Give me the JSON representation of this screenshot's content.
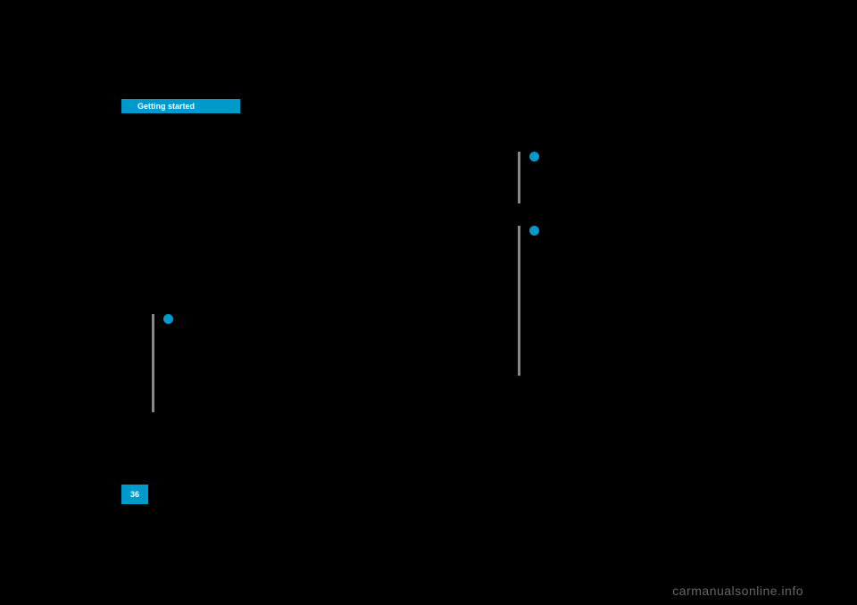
{
  "colors": {
    "page_bg": "#000000",
    "accent": "#0099cc",
    "text_white": "#ffffff",
    "tip_border": "#888888",
    "watermark": "#666666"
  },
  "header": {
    "tab_label": "Getting started"
  },
  "page_number": "36",
  "watermark_text": "carmanualsonline.info"
}
